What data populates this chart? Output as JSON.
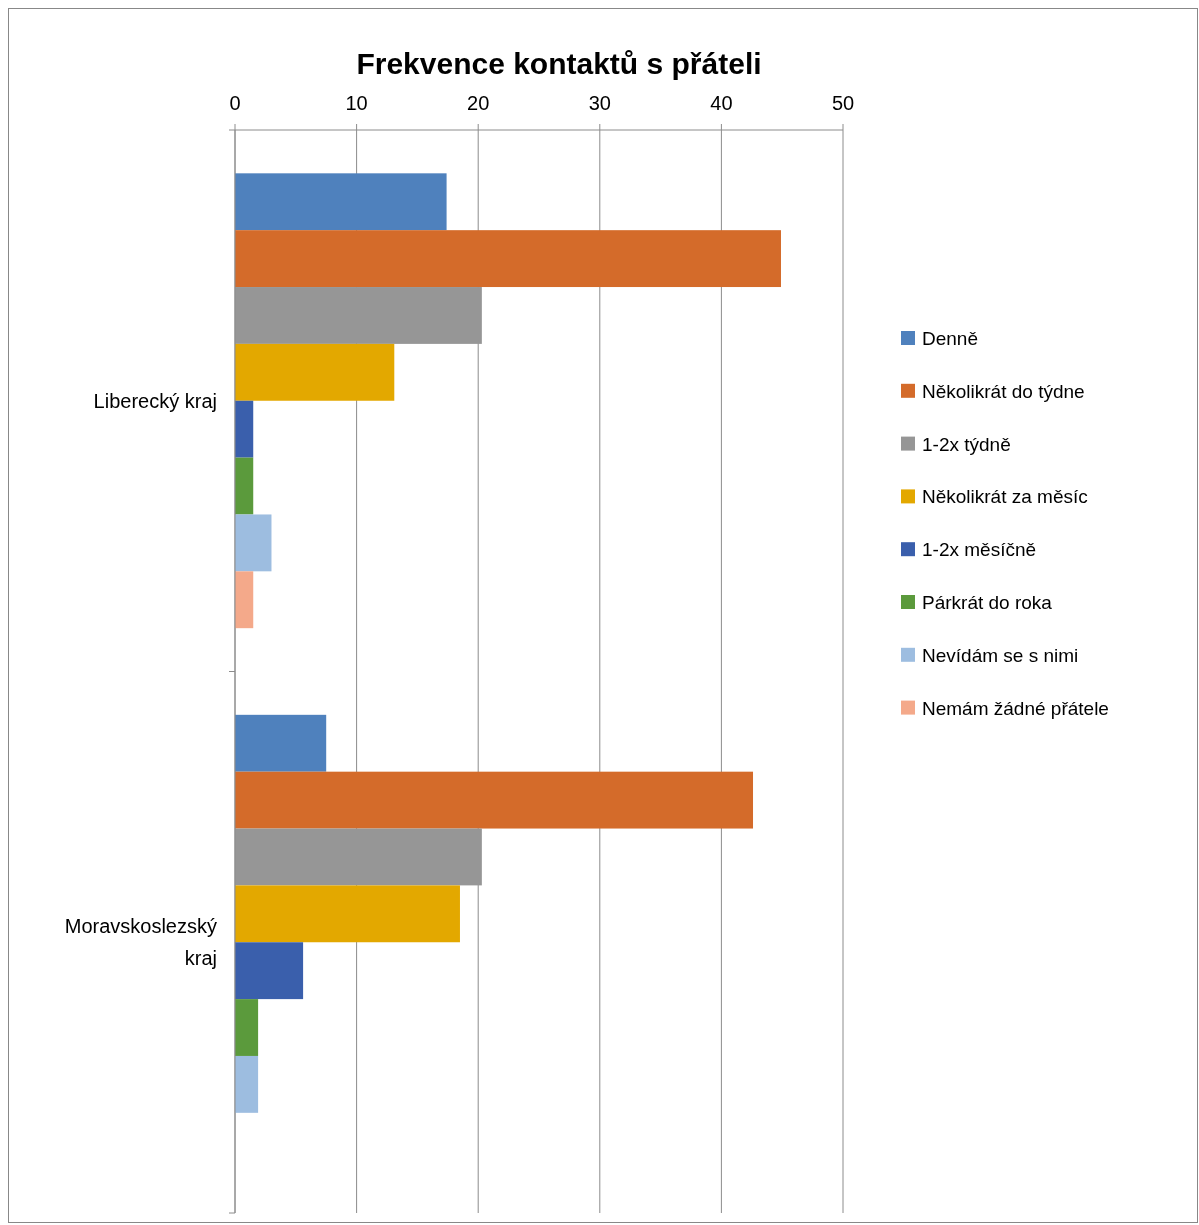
{
  "chart_data": {
    "type": "bar",
    "orientation": "horizontal",
    "title": "Frekvence kontaktů s přáteli",
    "categories": [
      "Liberecký kraj",
      "Moravskoslezský kraj"
    ],
    "series": [
      {
        "name": "Denně",
        "color": "#4f81bd",
        "values": [
          17.4,
          7.5
        ]
      },
      {
        "name": "Několikrát do týdne",
        "color": "#d46b2a",
        "values": [
          44.9,
          42.6
        ]
      },
      {
        "name": "1-2x týdně",
        "color": "#969696",
        "values": [
          20.3,
          20.3
        ]
      },
      {
        "name": "Několikrát za měsíc",
        "color": "#e3a800",
        "values": [
          13.1,
          18.5
        ]
      },
      {
        "name": "1-2x měsíčně",
        "color": "#3a5fac",
        "values": [
          1.5,
          5.6
        ]
      },
      {
        "name": "Párkrát do roka",
        "color": "#5b9a3c",
        "values": [
          1.5,
          1.9
        ]
      },
      {
        "name": "Nevídám se s nimi",
        "color": "#9dbde0",
        "values": [
          3.0,
          1.9
        ]
      },
      {
        "name": "Nemám žádné přátele",
        "color": "#f4a98a",
        "values": [
          1.5,
          0
        ]
      }
    ],
    "xlim": [
      0,
      50
    ],
    "xticks": [
      0,
      10,
      20,
      30,
      40,
      50
    ],
    "grid": "x",
    "legend": "right"
  }
}
